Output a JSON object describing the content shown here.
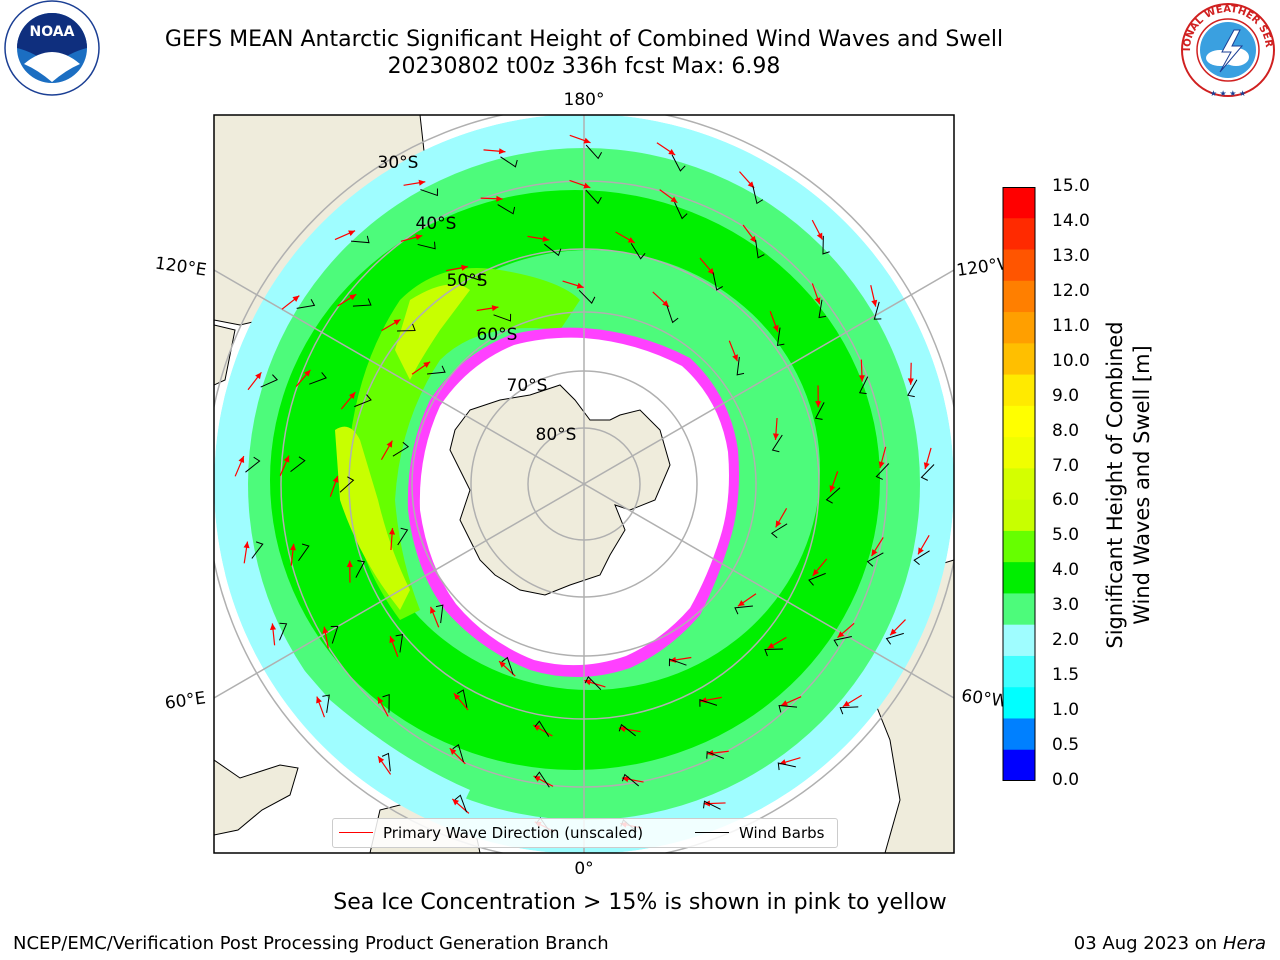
{
  "header": {
    "title_line1": "GEFS MEAN Antarctic Significant Height of Combined Wind Waves and Swell",
    "title_line2": "20230802 t00z 336h fcst   Max: 6.98"
  },
  "logos": {
    "left": {
      "name": "noaa-logo",
      "text": "NOAA",
      "ring_text": "NATIONAL OCEANIC AND ATMOSPHERIC ADMINISTRATION · U.S. DEPARTMENT OF COMMERCE"
    },
    "right": {
      "name": "nws-logo",
      "ring_text": "NATIONAL WEATHER SERVICE"
    }
  },
  "map": {
    "projection": "south-polar-stereographic",
    "longitude_labels": {
      "top": "180°",
      "bottom": "0°",
      "upper_left": "120°E",
      "upper_right": "120°W",
      "lower_left": "60°E",
      "lower_right": "60°W"
    },
    "latitude_labels": [
      "30°S",
      "40°S",
      "50°S",
      "60°S",
      "70°S",
      "80°S"
    ],
    "colors": {
      "land": "#efecdc",
      "ice": "#ffffff",
      "ocean_low": "#9ffdff",
      "ocean_mid": "#4dfb7b",
      "ocean_high": "#00f000",
      "ocean_peak": "#c8ff00",
      "ice_edge": "#ff40ff",
      "grid": "#b0b0b0",
      "arrow": "#ff0000",
      "barb": "#000000"
    }
  },
  "legend": {
    "items": [
      {
        "label": "Primary Wave Direction (unscaled)",
        "color": "#ff0000"
      },
      {
        "label": "Wind Barbs",
        "color": "#000000"
      }
    ]
  },
  "colorbar": {
    "title_line1": "Significant Height of Combined",
    "title_line2": "Wind Waves and Swell [m]",
    "ticks": [
      "15.0",
      "14.0",
      "13.0",
      "12.0",
      "11.0",
      "10.0",
      "9.0",
      "8.0",
      "7.0",
      "6.0",
      "5.0",
      "4.0",
      "3.0",
      "2.0",
      "1.5",
      "1.0",
      "0.5",
      "0.0"
    ],
    "colors_top_to_bottom": [
      "#ff0000",
      "#ff2a00",
      "#ff5500",
      "#ff7f00",
      "#ff9f00",
      "#ffbf00",
      "#ffea00",
      "#ffff00",
      "#f0ff00",
      "#d4ff00",
      "#c8ff00",
      "#66ff00",
      "#00ee00",
      "#4dfb7b",
      "#9ffdff",
      "#40ffff",
      "#00ffff",
      "#0080ff",
      "#0000ff"
    ]
  },
  "note": "Sea Ice Concentration > 15% is shown in pink to yellow",
  "footer": {
    "left": "NCEP/EMC/Verification Post Processing Product Generation Branch",
    "right_date": "03 Aug 2023 on",
    "right_machine": "Hera"
  }
}
